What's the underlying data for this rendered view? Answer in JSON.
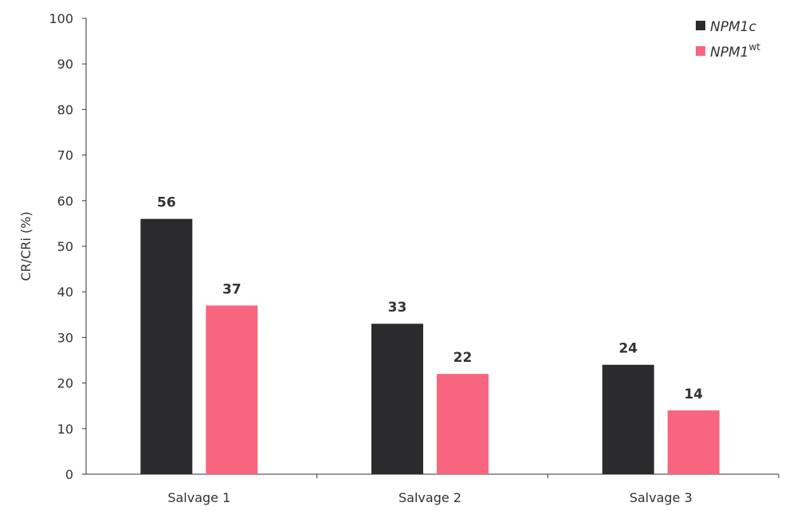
{
  "chart_data": {
    "type": "bar",
    "categories": [
      "Salvage 1",
      "Salvage 2",
      "Salvage 3"
    ],
    "series": [
      {
        "name": "NPM1c",
        "name_main": "NPM1c",
        "name_sup": "",
        "color": "#2b2a2c",
        "values": [
          56,
          33,
          24
        ]
      },
      {
        "name": "NPM1wt",
        "name_main": "NPM1",
        "name_sup": "wt",
        "color": "#f7667e",
        "values": [
          37,
          22,
          14
        ]
      }
    ],
    "title": "",
    "xlabel": "",
    "ylabel": "CR/CRi  (%)",
    "ylim": [
      0,
      100
    ],
    "yticks": [
      0,
      10,
      20,
      30,
      40,
      50,
      60,
      70,
      80,
      90,
      100
    ],
    "grid": false,
    "legend": "top-right",
    "data_labels": true
  }
}
